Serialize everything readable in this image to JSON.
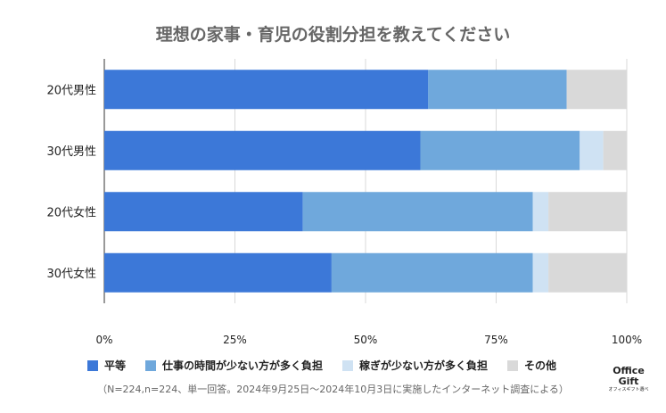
{
  "chart_data": {
    "type": "bar",
    "orientation": "horizontal",
    "stacked": true,
    "percent": true,
    "title": "理想の家事・育児の役割分担を教えてください",
    "categories": [
      "20代男性",
      "30代男性",
      "20代女性",
      "30代女性"
    ],
    "series": [
      {
        "name": "平等",
        "color": "#3c78d8",
        "values": [
          62.0,
          60.5,
          38.0,
          43.5
        ]
      },
      {
        "name": "仕事の時間が少ない方が多く負担",
        "color": "#6fa8dc",
        "values": [
          26.5,
          30.5,
          44.0,
          38.5
        ]
      },
      {
        "name": "稼ぎが少ない方が多く負担",
        "color": "#cfe2f3",
        "values": [
          0.0,
          4.5,
          3.0,
          3.0
        ]
      },
      {
        "name": "その他",
        "color": "#d9d9d9",
        "values": [
          11.5,
          4.5,
          15.0,
          15.0
        ]
      }
    ],
    "xlim": [
      0,
      100
    ],
    "xticks": [
      "0%",
      "25%",
      "50%",
      "75%",
      "100%"
    ],
    "grid": true,
    "legend_position": "bottom"
  },
  "footnote": "（N=224,n=224、単一回答。2024年9月25日〜2024年10月3日に実施したインターネット調査による）",
  "logo": {
    "line1": "Office",
    "line2": "Gift",
    "line3": "オフィスギフト選べ"
  }
}
